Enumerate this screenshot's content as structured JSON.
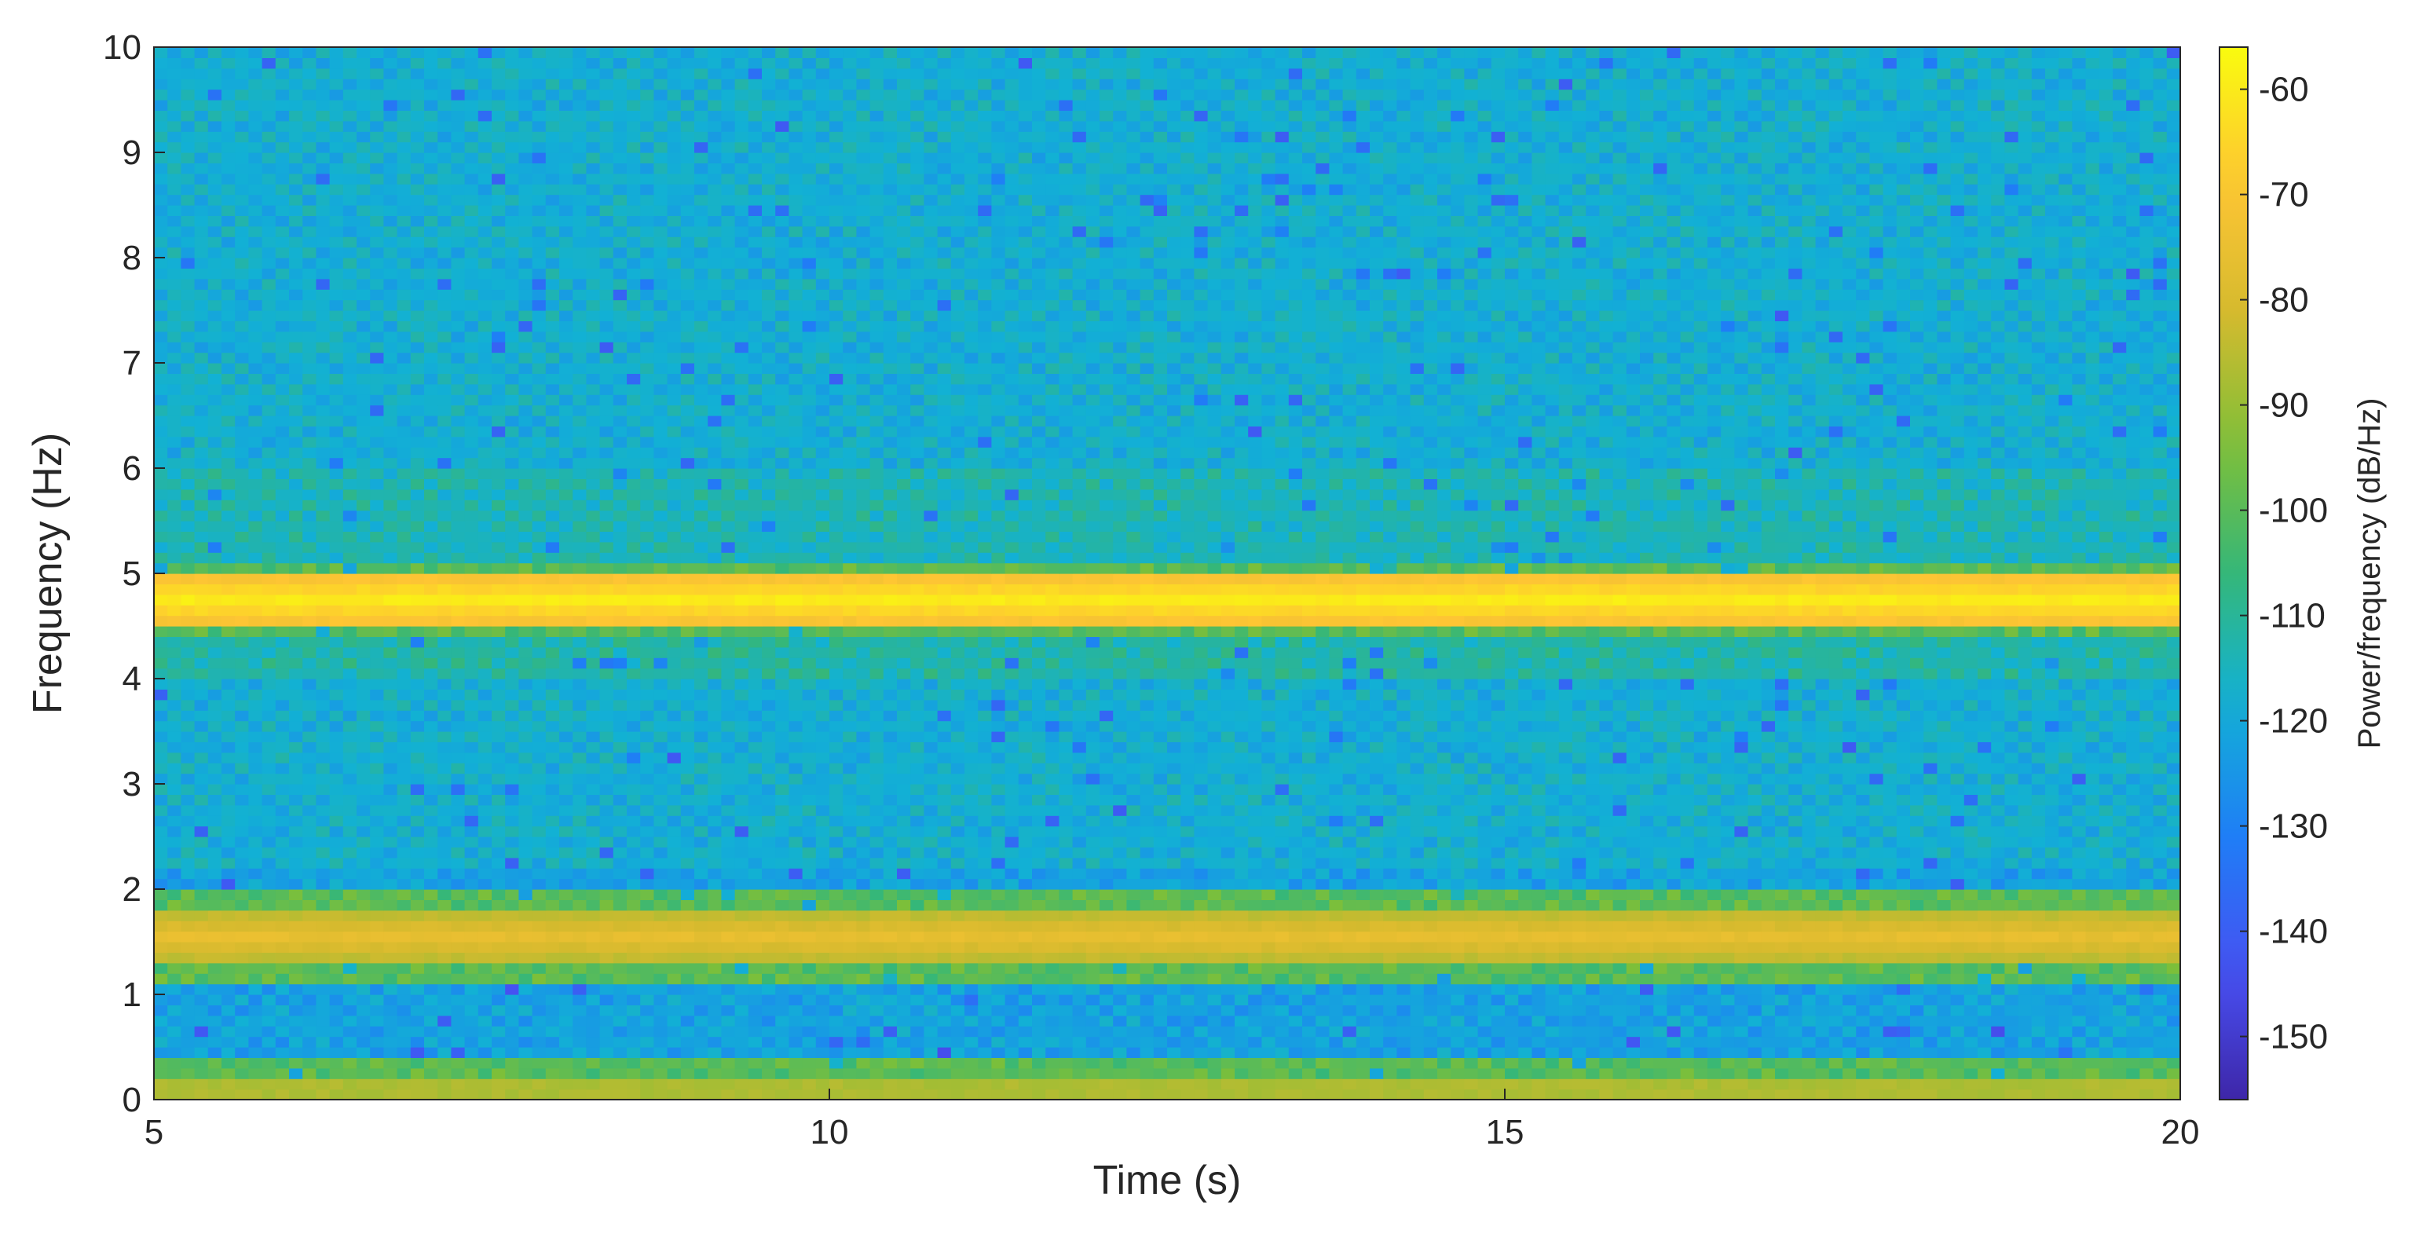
{
  "chart_data": {
    "type": "heatmap",
    "xlabel": "Time (s)",
    "ylabel": "Frequency (Hz)",
    "colorbar_label": "Power/frequency (dB/Hz)",
    "xlim": [
      5,
      20
    ],
    "ylim": [
      0,
      10
    ],
    "clim": [
      -156,
      -56
    ],
    "x_ticks": [
      5,
      10,
      15,
      20
    ],
    "y_ticks": [
      0,
      1,
      2,
      3,
      4,
      5,
      6,
      7,
      8,
      9,
      10
    ],
    "colorbar_ticks": [
      -60,
      -70,
      -80,
      -90,
      -100,
      -110,
      -120,
      -130,
      -140,
      -150
    ],
    "colormap": "parula",
    "background_level_db": -118,
    "bands": [
      {
        "f_low": 0.0,
        "f_high": 0.2,
        "peak_db": -82
      },
      {
        "f_low": 1.3,
        "f_high": 1.8,
        "peak_db": -76
      },
      {
        "f_low": 4.55,
        "f_high": 4.95,
        "peak_db": -60
      }
    ]
  }
}
